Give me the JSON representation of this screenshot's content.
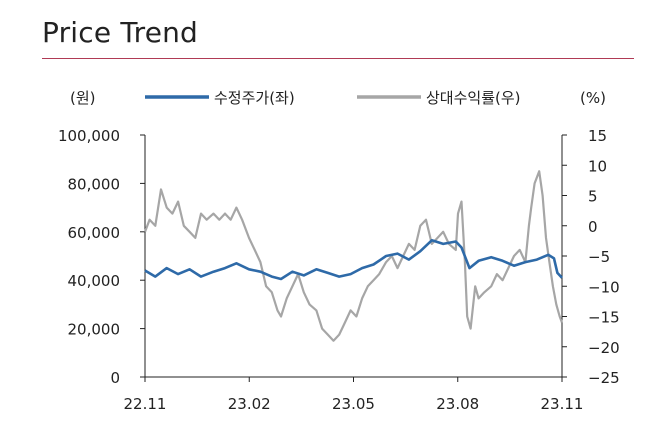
{
  "page": {
    "title": "Price Trend"
  },
  "chart_data": {
    "type": "line",
    "title": "Price Trend",
    "left_unit": "(원)",
    "right_unit": "(%)",
    "legend_position": "top-center",
    "grid": false,
    "x_ticks": [
      "22.11",
      "23.02",
      "23.05",
      "23.08",
      "23.11"
    ],
    "x_range": [
      "2022-11-01",
      "2023-11-01"
    ],
    "left_axis": {
      "ylim": [
        0,
        100000
      ],
      "ticks": [
        0,
        20000,
        40000,
        60000,
        80000,
        100000
      ],
      "tick_labels": [
        "0",
        "20,000",
        "40,000",
        "60,000",
        "80,000",
        "100,000"
      ]
    },
    "right_axis": {
      "ylim": [
        -25,
        15
      ],
      "ticks": [
        15,
        10,
        5,
        0,
        -5,
        -10,
        -15,
        -20,
        -25
      ],
      "tick_labels": [
        "15",
        "10",
        "5",
        "0",
        "−5",
        "−10",
        "−15",
        "−20",
        "−25"
      ]
    },
    "series": [
      {
        "name": "수정주가(좌)",
        "axis": "left",
        "color": "#2e6aa8",
        "points": [
          [
            "2022-11-01",
            44000
          ],
          [
            "2022-11-10",
            41500
          ],
          [
            "2022-11-20",
            45000
          ],
          [
            "2022-11-30",
            42500
          ],
          [
            "2022-12-10",
            44500
          ],
          [
            "2022-12-20",
            41500
          ],
          [
            "2022-12-31",
            43500
          ],
          [
            "2023-01-10",
            45000
          ],
          [
            "2023-01-20",
            47000
          ],
          [
            "2023-01-31",
            44500
          ],
          [
            "2023-02-10",
            43500
          ],
          [
            "2023-02-20",
            41500
          ],
          [
            "2023-02-28",
            40500
          ],
          [
            "2023-03-10",
            43500
          ],
          [
            "2023-03-20",
            42000
          ],
          [
            "2023-03-31",
            44500
          ],
          [
            "2023-04-10",
            43000
          ],
          [
            "2023-04-20",
            41500
          ],
          [
            "2023-04-30",
            42500
          ],
          [
            "2023-05-10",
            45000
          ],
          [
            "2023-05-20",
            46500
          ],
          [
            "2023-05-31",
            50000
          ],
          [
            "2023-06-10",
            51000
          ],
          [
            "2023-06-20",
            48500
          ],
          [
            "2023-06-30",
            52000
          ],
          [
            "2023-07-10",
            56500
          ],
          [
            "2023-07-20",
            55000
          ],
          [
            "2023-07-31",
            56000
          ],
          [
            "2023-08-05",
            53500
          ],
          [
            "2023-08-12",
            45000
          ],
          [
            "2023-08-20",
            48000
          ],
          [
            "2023-08-31",
            49500
          ],
          [
            "2023-09-10",
            48000
          ],
          [
            "2023-09-20",
            46000
          ],
          [
            "2023-09-30",
            47500
          ],
          [
            "2023-10-10",
            48500
          ],
          [
            "2023-10-20",
            50500
          ],
          [
            "2023-10-25",
            49000
          ],
          [
            "2023-10-28",
            43000
          ],
          [
            "2023-11-01",
            41000
          ]
        ]
      },
      {
        "name": "상대수익률(우)",
        "axis": "right",
        "color": "#a6a6a6",
        "points": [
          [
            "2022-11-01",
            -1
          ],
          [
            "2022-11-05",
            1
          ],
          [
            "2022-11-10",
            0
          ],
          [
            "2022-11-15",
            6
          ],
          [
            "2022-11-20",
            3
          ],
          [
            "2022-11-25",
            2
          ],
          [
            "2022-11-30",
            4
          ],
          [
            "2022-12-05",
            0
          ],
          [
            "2022-12-10",
            -1
          ],
          [
            "2022-12-15",
            -2
          ],
          [
            "2022-12-20",
            2
          ],
          [
            "2022-12-25",
            1
          ],
          [
            "2022-12-31",
            2
          ],
          [
            "2023-01-05",
            1
          ],
          [
            "2023-01-10",
            2
          ],
          [
            "2023-01-15",
            1
          ],
          [
            "2023-01-20",
            3
          ],
          [
            "2023-01-25",
            1
          ],
          [
            "2023-01-31",
            -2
          ],
          [
            "2023-02-05",
            -4
          ],
          [
            "2023-02-10",
            -6
          ],
          [
            "2023-02-15",
            -10
          ],
          [
            "2023-02-20",
            -11
          ],
          [
            "2023-02-25",
            -14
          ],
          [
            "2023-02-28",
            -15
          ],
          [
            "2023-03-05",
            -12
          ],
          [
            "2023-03-10",
            -10
          ],
          [
            "2023-03-15",
            -8
          ],
          [
            "2023-03-20",
            -11
          ],
          [
            "2023-03-25",
            -13
          ],
          [
            "2023-03-31",
            -14
          ],
          [
            "2023-04-05",
            -17
          ],
          [
            "2023-04-10",
            -18
          ],
          [
            "2023-04-15",
            -19
          ],
          [
            "2023-04-20",
            -18
          ],
          [
            "2023-04-25",
            -16
          ],
          [
            "2023-04-30",
            -14
          ],
          [
            "2023-05-05",
            -15
          ],
          [
            "2023-05-10",
            -12
          ],
          [
            "2023-05-15",
            -10
          ],
          [
            "2023-05-20",
            -9
          ],
          [
            "2023-05-25",
            -8
          ],
          [
            "2023-05-31",
            -6
          ],
          [
            "2023-06-05",
            -5
          ],
          [
            "2023-06-10",
            -7
          ],
          [
            "2023-06-15",
            -5
          ],
          [
            "2023-06-20",
            -3
          ],
          [
            "2023-06-25",
            -4
          ],
          [
            "2023-06-30",
            0
          ],
          [
            "2023-07-05",
            1
          ],
          [
            "2023-07-10",
            -3
          ],
          [
            "2023-07-15",
            -2
          ],
          [
            "2023-07-20",
            -1
          ],
          [
            "2023-07-25",
            -3
          ],
          [
            "2023-07-31",
            -4
          ],
          [
            "2023-08-02",
            2
          ],
          [
            "2023-08-05",
            4
          ],
          [
            "2023-08-08",
            -6
          ],
          [
            "2023-08-10",
            -15
          ],
          [
            "2023-08-13",
            -17
          ],
          [
            "2023-08-17",
            -10
          ],
          [
            "2023-08-20",
            -12
          ],
          [
            "2023-08-25",
            -11
          ],
          [
            "2023-08-31",
            -10
          ],
          [
            "2023-09-05",
            -8
          ],
          [
            "2023-09-10",
            -9
          ],
          [
            "2023-09-15",
            -7
          ],
          [
            "2023-09-20",
            -5
          ],
          [
            "2023-09-25",
            -4
          ],
          [
            "2023-09-30",
            -6
          ],
          [
            "2023-10-03",
            0
          ],
          [
            "2023-10-05",
            3
          ],
          [
            "2023-10-08",
            7
          ],
          [
            "2023-10-12",
            9
          ],
          [
            "2023-10-15",
            5
          ],
          [
            "2023-10-18",
            -2
          ],
          [
            "2023-10-21",
            -6
          ],
          [
            "2023-10-24",
            -10
          ],
          [
            "2023-10-27",
            -13
          ],
          [
            "2023-10-30",
            -15
          ],
          [
            "2023-11-01",
            -16
          ]
        ]
      }
    ]
  }
}
